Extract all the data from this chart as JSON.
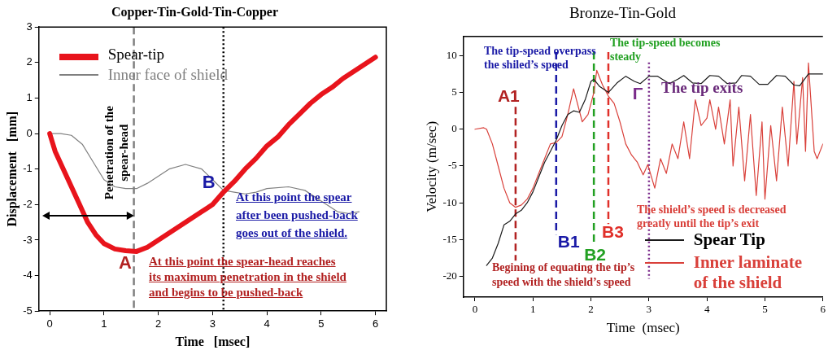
{
  "chart_data": [
    {
      "type": "line",
      "title": "Copper-Tin-Gold-Tin-Copper",
      "xlabel": "Time   [msec]",
      "ylabel": "Displacement   [mm]",
      "xlim": [
        -0.2,
        6.2
      ],
      "xticks": [
        0,
        1,
        2,
        3,
        4,
        5,
        6
      ],
      "ylim": [
        -5,
        3
      ],
      "yticks": [
        -5,
        -4,
        -3,
        -2,
        -1,
        0,
        1,
        2,
        3
      ],
      "grid": false,
      "legend": "top left",
      "series": [
        {
          "name": "Spear-tip",
          "color": "#e8141c",
          "x": [
            0,
            0.1,
            0.25,
            0.4,
            0.55,
            0.7,
            0.85,
            1.0,
            1.2,
            1.4,
            1.6,
            1.8,
            2.0,
            2.2,
            2.4,
            2.6,
            2.8,
            3.0,
            3.2,
            3.4,
            3.6,
            3.8,
            4.0,
            4.2,
            4.4,
            4.6,
            4.8,
            5.0,
            5.2,
            5.4,
            5.6,
            5.8,
            6.0
          ],
          "values": [
            0,
            -0.5,
            -1.0,
            -1.5,
            -2.0,
            -2.5,
            -2.85,
            -3.1,
            -3.25,
            -3.3,
            -3.32,
            -3.2,
            -3.0,
            -2.8,
            -2.6,
            -2.4,
            -2.2,
            -2.0,
            -1.65,
            -1.35,
            -1.0,
            -0.7,
            -0.35,
            -0.1,
            0.25,
            0.55,
            0.85,
            1.1,
            1.3,
            1.55,
            1.75,
            1.95,
            2.15
          ]
        },
        {
          "name": "Inner face of shield",
          "color": "#808080",
          "x": [
            0,
            0.2,
            0.4,
            0.6,
            0.8,
            1.0,
            1.2,
            1.4,
            1.6,
            1.8,
            2.0,
            2.2,
            2.5,
            2.8,
            3.0,
            3.2,
            3.4,
            3.6,
            3.8,
            4.0,
            4.4,
            4.7,
            5.0,
            5.3,
            5.5,
            5.7
          ],
          "values": [
            0,
            0,
            -0.05,
            -0.3,
            -0.8,
            -1.3,
            -1.5,
            -1.55,
            -1.55,
            -1.4,
            -1.2,
            -1.0,
            -0.87,
            -1.0,
            -1.3,
            -1.6,
            -1.65,
            -1.7,
            -1.65,
            -1.55,
            -1.5,
            -1.6,
            -1.9,
            -2.2,
            -2.25,
            -2.2
          ]
        }
      ],
      "ref_lines": [
        {
          "axis": "x",
          "value": 1.55,
          "label": "Penetration of the spear-head",
          "color": "#808080",
          "line_style": "dashed"
        },
        {
          "axis": "x",
          "value": 3.2,
          "color": "#000000",
          "line_style": "dotted"
        }
      ],
      "annotations": [
        {
          "text": "A",
          "x": 1.6,
          "y": -3.32
        },
        {
          "text": "B",
          "x": 3.2,
          "y": -1.65
        },
        "At this point the spear-head reaches\nits maximum penetration in the shield\nand begins to be pushed-back",
        "At this point the spear\nafter been pushed-back\ngoes out of the shield."
      ]
    },
    {
      "type": "line",
      "title": "Bronze-Tin-Gold",
      "xlabel": "Time  (msec)",
      "ylabel": "Velocity (m/sec)",
      "xlim": [
        -0.2,
        6
      ],
      "xticks": [
        0,
        1,
        2,
        3,
        4,
        5,
        6
      ],
      "ylim": [
        -22.8,
        12.6
      ],
      "yticks": [
        -20,
        -15,
        -10,
        -5,
        0,
        5,
        10
      ],
      "grid": false,
      "legend": "bottom right",
      "series": [
        {
          "name": "Spear Tip",
          "color": "#1a1a1a",
          "x": [
            0.2,
            0.3,
            0.4,
            0.5,
            0.6,
            0.7,
            0.8,
            0.9,
            1.0,
            1.1,
            1.2,
            1.3,
            1.4,
            1.5,
            1.6,
            1.7,
            1.8,
            1.9,
            2.0,
            2.05,
            2.15,
            2.3,
            2.45,
            2.6,
            2.75,
            2.85,
            3.0,
            3.15,
            3.35,
            3.5,
            3.6,
            3.75,
            3.9,
            4.05,
            4.2,
            4.35,
            4.5,
            4.6,
            4.75,
            4.9,
            5.05,
            5.2,
            5.35,
            5.5,
            5.6,
            5.75,
            6.0
          ],
          "values": [
            -18.5,
            -17.5,
            -15.5,
            -13,
            -12.5,
            -11.5,
            -11,
            -10,
            -8.5,
            -6.5,
            -4.5,
            -3,
            -1.5,
            0.5,
            2,
            2.5,
            2.3,
            4,
            6.5,
            6.8,
            5.8,
            5,
            6.3,
            7.2,
            6.5,
            6.2,
            7.2,
            7.2,
            6.2,
            6.8,
            7.3,
            6.3,
            6.2,
            7.3,
            7.2,
            6.2,
            6.3,
            7.3,
            7.2,
            6.1,
            6.1,
            7.3,
            7.2,
            6,
            5.9,
            7.5,
            7.5
          ]
        },
        {
          "name": "Inner laminate of the shield",
          "color": "#d9403a",
          "x": [
            0,
            0.15,
            0.2,
            0.3,
            0.4,
            0.5,
            0.6,
            0.7,
            0.8,
            0.9,
            1.0,
            1.1,
            1.2,
            1.3,
            1.4,
            1.5,
            1.6,
            1.7,
            1.75,
            1.85,
            1.95,
            2.05,
            2.1,
            2.2,
            2.3,
            2.4,
            2.5,
            2.6,
            2.7,
            2.8,
            2.9,
            2.98,
            3.1,
            3.2,
            3.3,
            3.4,
            3.5,
            3.6,
            3.7,
            3.8,
            3.9,
            4.0,
            4.05,
            4.15,
            4.2,
            4.3,
            4.4,
            4.45,
            4.55,
            4.65,
            4.75,
            4.85,
            4.95,
            5.0,
            5.1,
            5.2,
            5.3,
            5.4,
            5.5,
            5.55,
            5.65,
            5.7,
            5.75,
            5.85,
            5.9,
            6.0
          ],
          "values": [
            0,
            0.2,
            0,
            -2,
            -5,
            -8,
            -10,
            -10.6,
            -10.3,
            -9.5,
            -8,
            -6,
            -4,
            -2,
            -1.8,
            -1,
            2,
            5.5,
            4,
            1,
            2,
            5,
            8,
            6,
            4.5,
            3.5,
            1,
            -2,
            -3.5,
            -4.5,
            -6.2,
            -4.8,
            -8,
            -4,
            -6,
            -2,
            -4,
            1,
            -4,
            4,
            0.5,
            1.5,
            4,
            0,
            3,
            -2,
            4,
            -5,
            3,
            -7,
            2,
            -9,
            1,
            -9.5,
            0.5,
            -7,
            3,
            -5,
            6.5,
            -2,
            7,
            -3,
            9,
            -3,
            -4,
            -2
          ]
        }
      ],
      "ref_lines": [
        {
          "axis": "x",
          "value": 0.7,
          "label": "A1",
          "color": "#b22222",
          "line_style": "dashed"
        },
        {
          "axis": "x",
          "value": 1.4,
          "label": "B1",
          "color": "#1a1aa6",
          "line_style": "dashed"
        },
        {
          "axis": "x",
          "value": 2.05,
          "label": "B2",
          "color": "#22a022",
          "line_style": "dashed"
        },
        {
          "axis": "x",
          "value": 2.3,
          "label": "B3",
          "color": "#e0302a",
          "line_style": "dashed"
        },
        {
          "axis": "x",
          "value": 3.0,
          "label": "Γ",
          "color": "#7a2a8a",
          "line_style": "dotted"
        }
      ],
      "annotations": [
        "The tip-spead overpass\nthe shiled’s speed",
        "The tip-speed becomes\nsteady",
        "The tip exits",
        "The shield’s speed is decreased\ngreatly until the tip’s exit",
        "Begining of equating the tip’s\nspeed with the shield’s speed"
      ]
    }
  ]
}
